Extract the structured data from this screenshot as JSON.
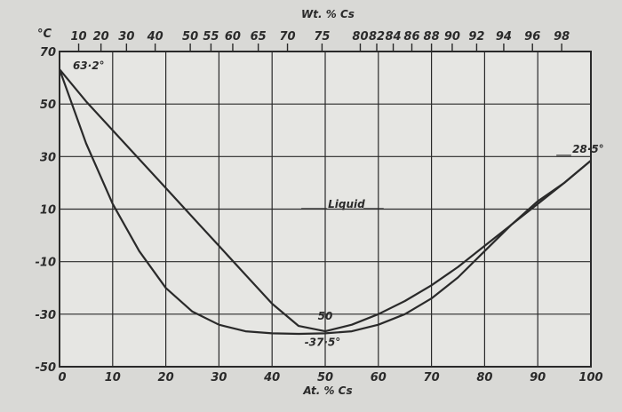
{
  "chart_data": {
    "type": "line",
    "title": "",
    "xlabel": "At. % Cs",
    "x2label": "Wt. % Cs",
    "ylabel": "°C",
    "xlim": [
      0,
      100
    ],
    "ylim": [
      -50,
      70
    ],
    "grid": true,
    "x_ticks": [
      "0",
      "10",
      "20",
      "30",
      "40",
      "50",
      "60",
      "70",
      "80",
      "90",
      "100"
    ],
    "y_ticks": [
      "70",
      "50",
      "30",
      "10",
      "-10",
      "-30",
      "-50"
    ],
    "top_ticks": [
      {
        "label": "10",
        "at": 3.6
      },
      {
        "label": "20",
        "at": 7.8
      },
      {
        "label": "30",
        "at": 12.6
      },
      {
        "label": "40",
        "at": 18.0
      },
      {
        "label": "50",
        "at": 24.6
      },
      {
        "label": "55",
        "at": 28.5
      },
      {
        "label": "60",
        "at": 32.6
      },
      {
        "label": "65",
        "at": 37.4
      },
      {
        "label": "70",
        "at": 42.9
      },
      {
        "label": "75",
        "at": 49.4
      },
      {
        "label": "80",
        "at": 56.6
      },
      {
        "label": "82",
        "at": 59.7
      },
      {
        "label": "84",
        "at": 62.8
      },
      {
        "label": "86",
        "at": 66.3
      },
      {
        "label": "88",
        "at": 70.0
      },
      {
        "label": "90",
        "at": 73.9
      },
      {
        "label": "92",
        "at": 78.5
      },
      {
        "label": "94",
        "at": 83.6
      },
      {
        "label": "96",
        "at": 89.0
      },
      {
        "label": "98",
        "at": 94.5
      }
    ],
    "series": [
      {
        "x": [
          0,
          5,
          10,
          15,
          20,
          25,
          30,
          35,
          40,
          45,
          50,
          55,
          60,
          65,
          70,
          75,
          80,
          85,
          90,
          95,
          100
        ],
        "y": [
          63.2,
          51,
          40,
          29,
          18,
          7,
          -4,
          -15,
          -26,
          -34.5,
          -36.5,
          -34,
          -30,
          -25,
          -19,
          -12,
          -4,
          4,
          12,
          20,
          28.5
        ]
      },
      {
        "x": [
          0,
          5,
          10,
          15,
          20,
          25,
          30,
          35,
          40,
          45,
          50,
          55,
          60,
          65,
          70,
          75,
          80,
          85,
          90,
          95,
          100
        ],
        "y": [
          63.2,
          35,
          12,
          -6,
          -20,
          -29,
          -34,
          -36.5,
          -37.3,
          -37.5,
          -37.3,
          -36.5,
          -34,
          -30,
          -24,
          -16,
          -6,
          4,
          13,
          20,
          28.5
        ]
      }
    ],
    "annotations": [
      {
        "text": "63·2°",
        "x": 2.5,
        "y": 63.2
      },
      {
        "text": "28·5°",
        "x": 96.5,
        "y": 31.5
      },
      {
        "text": "Liquid",
        "x": 50.5,
        "y": 10.5
      },
      {
        "text": "50",
        "x": 50,
        "y": -32
      },
      {
        "text": "-37·5°",
        "x": 49.5,
        "y": -42
      }
    ]
  }
}
